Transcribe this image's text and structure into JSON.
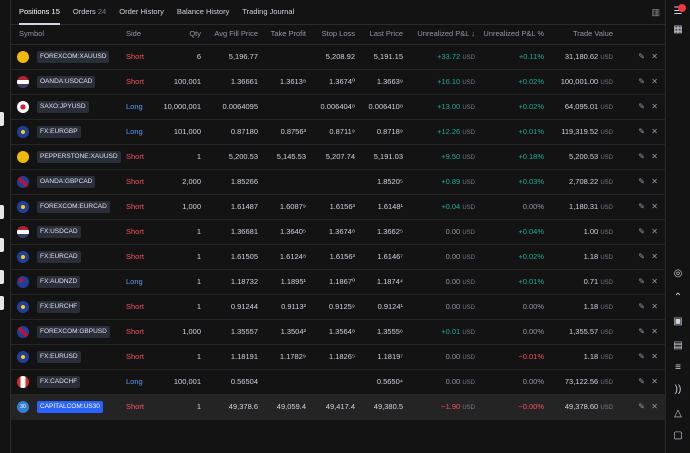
{
  "tabs": [
    {
      "label": "Positions",
      "count": "15"
    },
    {
      "label": "Orders",
      "count": "24"
    },
    {
      "label": "Order History",
      "count": ""
    },
    {
      "label": "Balance History",
      "count": ""
    },
    {
      "label": "Trading Journal",
      "count": ""
    }
  ],
  "columns": [
    "Symbol",
    "Side",
    "Qty",
    "Avg Fill Price",
    "Take Profit",
    "Stop Loss",
    "Last Price",
    "Unrealized P&L ↓",
    "Unrealized P&L %",
    "Trade Value"
  ],
  "currency": "USD",
  "colors": {
    "short": "#f7525f",
    "long": "#5b9cf6",
    "profit": "#22ab94",
    "loss": "#f7525f",
    "selected_symbol": "#2962ff"
  },
  "rows": [
    {
      "symbol": "FOREXCOM:XAUUSD",
      "flag": "gold",
      "side": "Short",
      "qty": "6",
      "avg": "5,196.77",
      "tp": "",
      "sl": "5,208.92",
      "last": "5,191.15",
      "pnl": "+33.72",
      "pnl_unit": "USD",
      "pct": "+0.11%",
      "value": "31,180.62",
      "tone": "pos"
    },
    {
      "symbol": "OANDA:USDCAD",
      "flag": "usd",
      "side": "Short",
      "qty": "100,001",
      "avg": "1.36661",
      "tp": "1.3613⁸",
      "sl": "1.3674⁰",
      "last": "1.3663⁹",
      "pnl": "+16.10",
      "pnl_unit": "USD",
      "pct": "+0.02%",
      "value": "100,001.00",
      "tone": "pos"
    },
    {
      "symbol": "SAXO:JPYUSD",
      "flag": "jpy",
      "side": "Long",
      "qty": "10,000,001",
      "avg": "0.0064095",
      "tp": "",
      "sl": "0.006404⁸",
      "last": "0.006410⁸",
      "pnl": "+13.00",
      "pnl_unit": "USD",
      "pct": "+0.02%",
      "value": "64,095.01",
      "tone": "pos"
    },
    {
      "symbol": "FX:EURGBP",
      "flag": "eur",
      "side": "Long",
      "qty": "101,000",
      "avg": "0.87180",
      "tp": "0.8756³",
      "sl": "0.8711⁹",
      "last": "0.8718⁹",
      "pnl": "+12.26",
      "pnl_unit": "USD",
      "pct": "+0.01%",
      "value": "119,319.52",
      "tone": "pos"
    },
    {
      "symbol": "PEPPERSTONE:XAUUSD",
      "flag": "gold",
      "side": "Short",
      "qty": "1",
      "avg": "5,200.53",
      "tp": "5,145.53",
      "sl": "5,207.74",
      "last": "5,191.03",
      "pnl": "+9.50",
      "pnl_unit": "USD",
      "pct": "+0.18%",
      "value": "5,200.53",
      "tone": "pos"
    },
    {
      "symbol": "OANDA:GBPCAD",
      "flag": "gbp",
      "side": "Short",
      "qty": "2,000",
      "avg": "1.85266",
      "tp": "",
      "sl": "",
      "last": "1.8520⁵",
      "pnl": "+0.89",
      "pnl_unit": "USD",
      "pct": "+0.03%",
      "value": "2,708.22",
      "tone": "pos"
    },
    {
      "symbol": "FOREXCOM:EURCAD",
      "flag": "eur",
      "side": "Short",
      "qty": "1,000",
      "avg": "1.61487",
      "tp": "1.6087⁹",
      "sl": "1.6156³",
      "last": "1.6148¹",
      "pnl": "+0.04",
      "pnl_unit": "USD",
      "pct": "0.00%",
      "value": "1,180.31",
      "tone": "pos"
    },
    {
      "symbol": "FX:USDCAD",
      "flag": "usd",
      "side": "Short",
      "qty": "1",
      "avg": "1.36681",
      "tp": "1.3640⁵",
      "sl": "1.3674⁸",
      "last": "1.3662⁵",
      "pnl": "0.00",
      "pnl_unit": "USD",
      "pct": "+0.04%",
      "value": "1.00",
      "tone": "zero"
    },
    {
      "symbol": "FX:EURCAD",
      "flag": "eur",
      "side": "Short",
      "qty": "1",
      "avg": "1.61505",
      "tp": "1.6124⁸",
      "sl": "1.6156³",
      "last": "1.6146⁷",
      "pnl": "0.00",
      "pnl_unit": "USD",
      "pct": "+0.02%",
      "value": "1.18",
      "tone": "zero"
    },
    {
      "symbol": "FX:AUDNZD",
      "flag": "aud",
      "side": "Long",
      "qty": "1",
      "avg": "1.18732",
      "tp": "1.1895¹",
      "sl": "1.1867⁰",
      "last": "1.1874⁴",
      "pnl": "0.00",
      "pnl_unit": "USD",
      "pct": "+0.01%",
      "value": "0.71",
      "tone": "zero"
    },
    {
      "symbol": "FX:EURCHF",
      "flag": "eur",
      "side": "Short",
      "qty": "1",
      "avg": "0.91244",
      "tp": "0.9113²",
      "sl": "0.9125⁹",
      "last": "0.9124¹",
      "pnl": "0.00",
      "pnl_unit": "USD",
      "pct": "0.00%",
      "value": "1.18",
      "tone": "zero"
    },
    {
      "symbol": "FOREXCOM:GBPUSD",
      "flag": "gbp",
      "side": "Short",
      "qty": "1,000",
      "avg": "1.35557",
      "tp": "1.3504²",
      "sl": "1.3564⁸",
      "last": "1.3555⁶",
      "pnl": "+0.01",
      "pnl_unit": "USD",
      "pct": "0.00%",
      "value": "1,355.57",
      "tone": "pos"
    },
    {
      "symbol": "FX:EURUSD",
      "flag": "eur",
      "side": "Short",
      "qty": "1",
      "avg": "1.18191",
      "tp": "1.1782⁹",
      "sl": "1.1826⁵",
      "last": "1.1819⁷",
      "pnl": "0.00",
      "pnl_unit": "USD",
      "pct": "−0.01%",
      "value": "1.18",
      "tone": "zero"
    },
    {
      "symbol": "FX:CADCHF",
      "flag": "cad",
      "side": "Long",
      "qty": "100,001",
      "avg": "0.56504",
      "tp": "",
      "sl": "",
      "last": "0.5650⁴",
      "pnl": "0.00",
      "pnl_unit": "USD",
      "pct": "0.00%",
      "value": "73,122.56",
      "tone": "zero"
    },
    {
      "symbol": "CAPITALCOM:US30",
      "flag": "us30",
      "flag_text": "30",
      "side": "Short",
      "qty": "1",
      "avg": "49,378.6",
      "tp": "49,059.4",
      "sl": "49,417.4",
      "last": "49,380.5",
      "pnl": "−1.90",
      "pnl_unit": "USD",
      "pct": "−0.00%",
      "value": "49,378.60",
      "tone": "neg",
      "selected": true
    }
  ]
}
